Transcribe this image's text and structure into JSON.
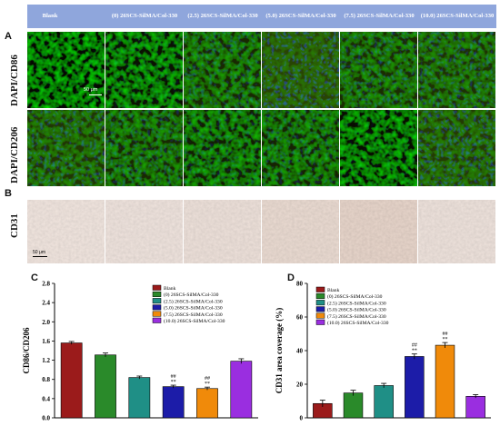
{
  "panels": {
    "A": "A",
    "B": "B",
    "C": "C",
    "D": "D"
  },
  "columns": [
    "Blank",
    "(0) 26SCS-SilMA/Col-330",
    "(2.5) 26SCS-SilMA/Col-330",
    "(5.0) 26SCS-SilMA/Col-330",
    "(7.5) 26SCS-SilMA/Col-330",
    "(10.0) 26SCS-SilMA/Col-330"
  ],
  "row_labels": {
    "cd86": "DAPI/CD86",
    "cd206": "DAPI/CD206",
    "cd31": "CD31"
  },
  "scale_bars": {
    "fluor": "50 μm",
    "ihc": "50 μm"
  },
  "colors": {
    "header": "#8fa6dc",
    "series": [
      "#9b1b1b",
      "#2a8a2a",
      "#1f8f86",
      "#1c1ca8",
      "#f08a0a",
      "#9a2ee0"
    ]
  },
  "chart_data": [
    {
      "type": "bar",
      "panel": "C",
      "ylabel": "CD86/CD206",
      "ylim": [
        0.0,
        2.8
      ],
      "yticks": [
        "0.0",
        "0.4",
        "0.8",
        "1.2",
        "1.6",
        "2.0",
        "2.4",
        "2.8"
      ],
      "legend_position": "top-right",
      "legend": [
        "Blank",
        "(0) 26SCS-SilMA/Col-330",
        "(2.5) 26SCS-SilMA/Col-330",
        "(5.0) 26SCS-SilMA/Col-330",
        "(7.5) 26SCS-SilMA/Col-330",
        "(10.0) 26SCS-SilMA/Col-330"
      ],
      "values": [
        1.56,
        1.31,
        0.84,
        0.65,
        0.61,
        1.18
      ],
      "errors": [
        0.03,
        0.04,
        0.03,
        0.03,
        0.03,
        0.05
      ],
      "annotations": [
        "",
        "",
        "",
        "##\n**",
        "##\n**",
        ""
      ]
    },
    {
      "type": "bar",
      "panel": "D",
      "ylabel": "CD31 area coverage (%)",
      "ylim": [
        0,
        80
      ],
      "yticks": [
        "0",
        "20",
        "40",
        "60",
        "80"
      ],
      "legend_position": "top-left",
      "legend": [
        "Blank",
        "(0) 26SCS-SilMA/Col-330",
        "(2.5) 26SCS-SilMA/Col-330",
        "(5.0) 26SCS-SilMA/Col-330",
        "(7.5) 26SCS-SilMA/Col-330",
        "(10.0) 26SCS-SilMA/Col-330"
      ],
      "values": [
        8.5,
        14.8,
        19.2,
        36.5,
        43.2,
        12.8
      ],
      "errors": [
        2.0,
        1.6,
        1.3,
        1.5,
        1.6,
        1.0
      ],
      "annotations": [
        "",
        "",
        "",
        "##\n**",
        "##\n**",
        ""
      ]
    }
  ]
}
